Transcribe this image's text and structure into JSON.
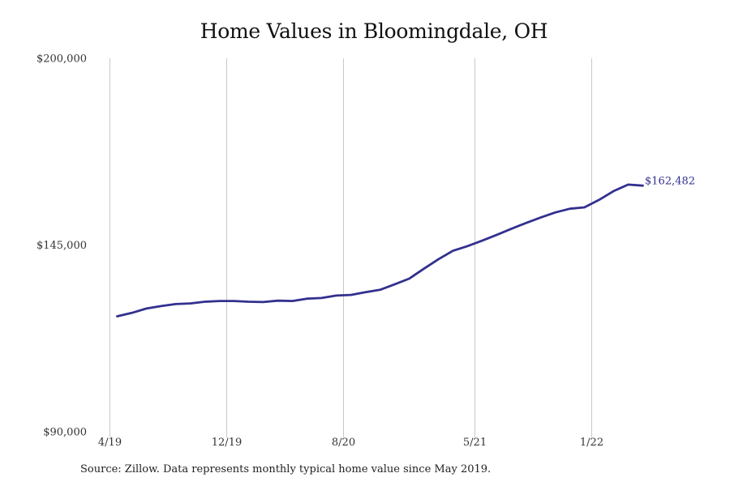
{
  "chart_data": {
    "type": "line",
    "title": "Home Values in Bloomingdale, OH",
    "source": "Source: Zillow. Data represents monthly typical home value since May 2019.",
    "xlabel": "",
    "ylabel": "",
    "ylim": [
      90000,
      200000
    ],
    "y_ticks": [
      {
        "value": 90000,
        "label": "$90,000"
      },
      {
        "value": 145000,
        "label": "$145,000"
      },
      {
        "value": 200000,
        "label": "$200,000"
      }
    ],
    "x_ticks": [
      {
        "month_index": 0,
        "label": "4/19"
      },
      {
        "month_index": 8,
        "label": "12/19"
      },
      {
        "month_index": 16,
        "label": "8/20"
      },
      {
        "month_index": 25,
        "label": "5/21"
      },
      {
        "month_index": 33,
        "label": "1/22"
      }
    ],
    "x_range": [
      0,
      33
    ],
    "grid": "vertical lines at x ticks",
    "line_color": "#33308f",
    "end_label": "$162,482",
    "series": [
      {
        "x": [
          "5/19",
          "6/19",
          "7/19",
          "8/19",
          "9/19",
          "10/19",
          "11/19",
          "12/19",
          "1/20",
          "2/20",
          "3/20",
          "4/20",
          "5/20",
          "6/20",
          "7/20",
          "8/20",
          "9/20",
          "10/20",
          "11/20",
          "12/20",
          "1/21",
          "2/21",
          "3/21",
          "4/21",
          "5/21",
          "6/21",
          "7/21",
          "8/21",
          "9/21",
          "10/21",
          "11/21",
          "12/21",
          "1/22",
          "2/22",
          "3/22",
          "4/22",
          "5/22"
        ],
        "month_index": [
          0.5,
          1.5,
          2.5,
          3.5,
          4.5,
          5.5,
          6.5,
          7.5,
          8.5,
          9.5,
          10.5,
          11.5,
          12.5,
          13.5,
          14.5,
          15.5,
          16.5,
          17.5,
          18.5,
          19.5,
          20.5,
          21.5,
          22.5,
          23.5,
          24.5,
          25.5,
          26.5,
          27.5,
          28.5,
          29.5,
          30.5,
          31.5,
          32.5,
          33.5,
          34.5,
          35.5,
          36.5
        ],
        "values": [
          124000,
          125000,
          126300,
          127000,
          127600,
          127800,
          128300,
          128500,
          128500,
          128300,
          128200,
          128600,
          128500,
          129200,
          129400,
          130100,
          130300,
          131100,
          131800,
          133400,
          135100,
          138000,
          140800,
          143300,
          144700,
          146300,
          148000,
          149800,
          151500,
          153100,
          154600,
          155700,
          156100,
          158300,
          160900,
          162800,
          162482
        ]
      }
    ]
  }
}
